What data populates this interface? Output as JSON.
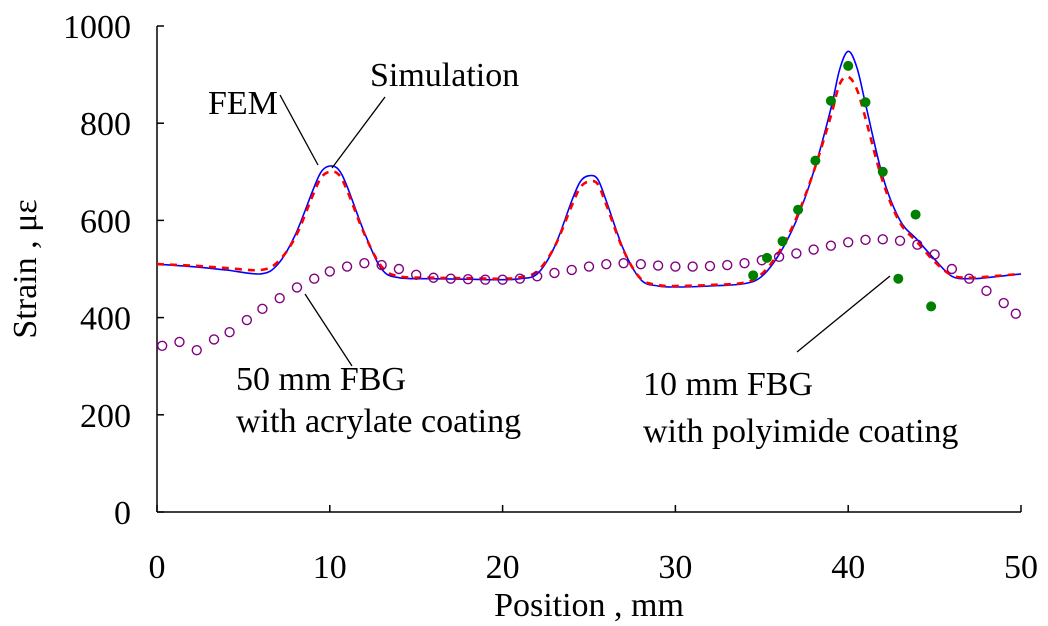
{
  "chart_data": {
    "type": "scatter",
    "xlabel": "Position , mm",
    "ylabel": "Strain , με",
    "xlim": [
      0,
      50
    ],
    "ylim": [
      0,
      1000
    ],
    "xticks": [
      "0",
      "10",
      "20",
      "30",
      "40",
      "50"
    ],
    "yticks": [
      "0",
      "200",
      "400",
      "600",
      "800",
      "1000"
    ],
    "grid": false,
    "series": [
      {
        "name": "FEM",
        "style": "line",
        "color": "#0000ff",
        "x": [
          0,
          2,
          4,
          6,
          7,
          8,
          9,
          9.5,
          10,
          10.5,
          11,
          12,
          13,
          14,
          16,
          18,
          20,
          21,
          22,
          23,
          24,
          24.5,
          25,
          25.5,
          26,
          27,
          28,
          29,
          30,
          32,
          34,
          35,
          36,
          37,
          38,
          39,
          39.5,
          40,
          40.5,
          41,
          42,
          43,
          44,
          45,
          46,
          47,
          48,
          50
        ],
        "y": [
          510,
          505,
          498,
          490,
          510,
          570,
          660,
          700,
          712,
          705,
          670,
          575,
          500,
          482,
          480,
          479,
          478,
          480,
          490,
          545,
          640,
          680,
          692,
          685,
          640,
          540,
          478,
          465,
          463,
          465,
          470,
          485,
          530,
          600,
          700,
          830,
          910,
          948,
          915,
          840,
          690,
          600,
          560,
          520,
          485,
          480,
          482,
          490
        ]
      },
      {
        "name": "Simulation",
        "style": "dashed",
        "color": "#ff0000",
        "x": [
          0,
          2,
          4,
          6,
          7,
          8,
          9,
          9.5,
          10,
          10.5,
          11,
          12,
          13,
          14,
          16,
          18,
          20,
          21,
          22,
          23,
          24,
          24.5,
          25,
          25.5,
          26,
          27,
          28,
          29,
          30,
          32,
          34,
          35,
          36,
          37,
          38,
          39,
          39.5,
          40,
          40.5,
          41,
          42,
          43,
          44,
          45,
          46,
          47,
          48,
          50
        ],
        "y": [
          510,
          507,
          502,
          498,
          515,
          565,
          650,
          688,
          700,
          695,
          662,
          572,
          505,
          485,
          482,
          481,
          480,
          483,
          495,
          545,
          630,
          668,
          680,
          675,
          632,
          538,
          480,
          467,
          465,
          467,
          472,
          490,
          535,
          605,
          700,
          815,
          880,
          895,
          870,
          810,
          680,
          595,
          555,
          515,
          487,
          482,
          484,
          490
        ]
      },
      {
        "name": "50 mm FBG with acrylate coating",
        "style": "open-circle",
        "color": "#800080",
        "x": [
          0.3,
          1.3,
          2.3,
          3.3,
          4.2,
          5.2,
          6.1,
          7.1,
          8.1,
          9.1,
          10,
          11,
          12,
          13,
          14,
          15,
          16,
          17,
          18,
          19,
          20,
          21,
          22,
          23,
          24,
          25,
          26,
          27,
          28,
          29,
          30,
          31,
          32,
          33,
          34,
          35,
          36,
          37,
          38,
          39,
          40,
          41,
          42,
          43,
          44,
          45,
          46,
          47,
          48,
          49,
          49.7
        ],
        "y": [
          342,
          350,
          333,
          355,
          370,
          395,
          418,
          440,
          462,
          480,
          495,
          505,
          512,
          508,
          500,
          488,
          482,
          480,
          479,
          478,
          478,
          480,
          485,
          492,
          498,
          505,
          510,
          512,
          510,
          507,
          505,
          505,
          506,
          508,
          512,
          518,
          525,
          532,
          540,
          548,
          555,
          560,
          561,
          558,
          550,
          530,
          500,
          480,
          455,
          430,
          408
        ]
      },
      {
        "name": "10 mm FBG with polyimide coating",
        "style": "filled-circle",
        "color": "#008000",
        "x": [
          34.5,
          35.3,
          36.2,
          37.1,
          38.1,
          39,
          40,
          41,
          42,
          42.9,
          43.9,
          44.8
        ],
        "y": [
          487,
          523,
          557,
          622,
          723,
          846,
          918,
          843,
          700,
          480,
          612,
          423
        ]
      }
    ],
    "annotations": [
      {
        "text": "FEM",
        "target_series": "FEM"
      },
      {
        "text": "Simulation",
        "target_series": "Simulation"
      },
      {
        "text": "50 mm FBG",
        "text2": "with acrylate coating",
        "target_series": "50 mm FBG with acrylate coating"
      },
      {
        "text": "10 mm FBG",
        "text2": "with polyimide coating",
        "target_series": "10 mm FBG with polyimide coating"
      }
    ]
  }
}
